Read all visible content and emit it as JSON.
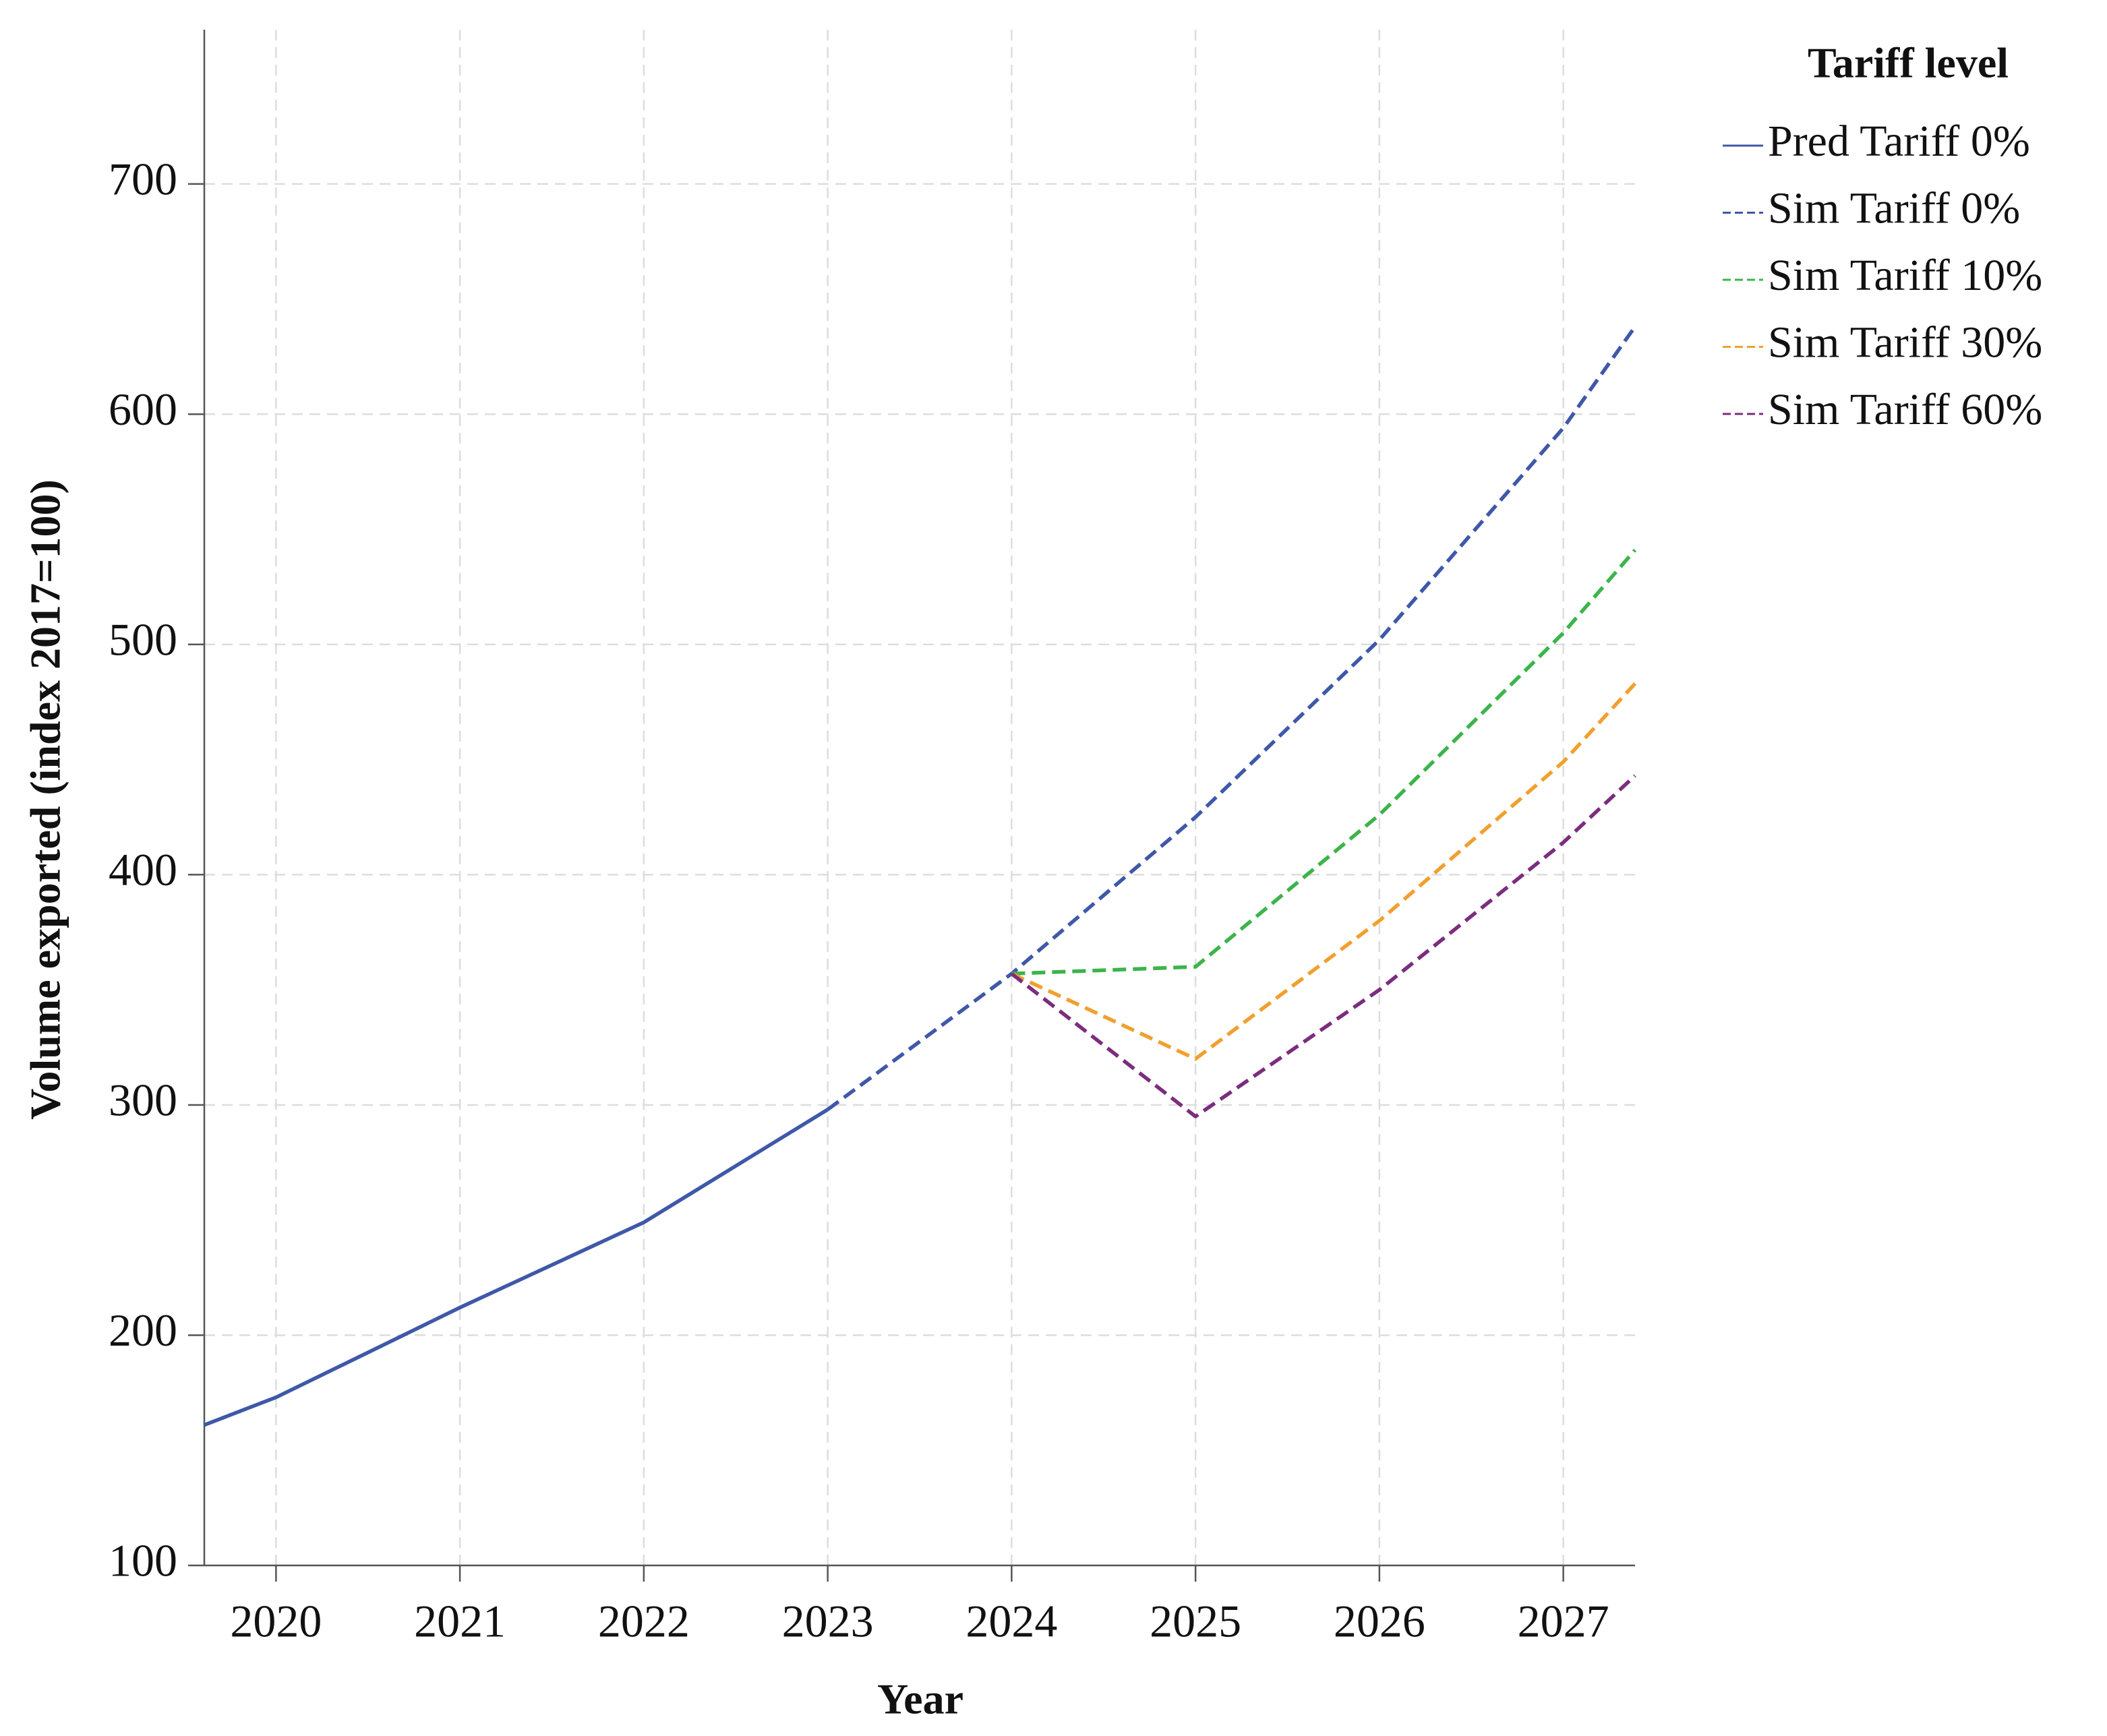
{
  "chart_data": {
    "type": "line",
    "x_label": "Year",
    "y_label": "Volume exported (index 2017=100)",
    "legend_title": "Tariff level",
    "legend_position": "right",
    "grid": true,
    "x": [
      2019.61,
      2020,
      2021,
      2022,
      2023,
      2024,
      2025,
      2026,
      2027,
      2027.39
    ],
    "xlim": [
      2019.61,
      2027.39
    ],
    "xticks": [
      2020,
      2021,
      2022,
      2023,
      2024,
      2025,
      2026,
      2027
    ],
    "ylim": [
      100,
      767
    ],
    "yticks": [
      100,
      200,
      300,
      400,
      500,
      600,
      700
    ],
    "series": [
      {
        "name": "Pred Tariff 0%",
        "color": "#3f58a8",
        "linestyle": "solid",
        "values": [
          161,
          173,
          212,
          249,
          298,
          null,
          null,
          null,
          null,
          null
        ]
      },
      {
        "name": "Sim Tariff 0%",
        "color": "#3f58a8",
        "linestyle": "dashed",
        "values": [
          null,
          null,
          null,
          null,
          298,
          357,
          425,
          502,
          594,
          638
        ]
      },
      {
        "name": "Sim Tariff 10%",
        "color": "#3cb44b",
        "linestyle": "dashed",
        "values": [
          null,
          null,
          null,
          null,
          null,
          357,
          360,
          426,
          505,
          541
        ]
      },
      {
        "name": "Sim Tariff 30%",
        "color": "#f0a030",
        "linestyle": "dashed",
        "values": [
          null,
          null,
          null,
          null,
          null,
          357,
          320,
          380,
          449,
          483
        ]
      },
      {
        "name": "Sim Tariff 60%",
        "color": "#7b2d7e",
        "linestyle": "dashed",
        "values": [
          null,
          null,
          null,
          null,
          null,
          357,
          295,
          350,
          414,
          443
        ]
      }
    ]
  }
}
